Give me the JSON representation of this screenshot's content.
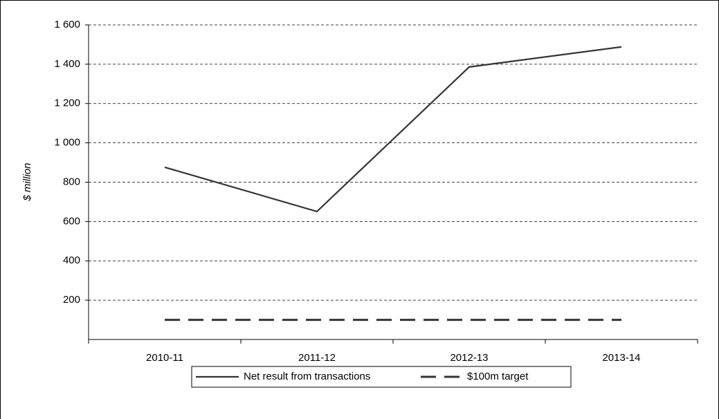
{
  "chart_data": {
    "type": "line",
    "y_label": "$ million",
    "categories": [
      "2010-11",
      "2011-12",
      "2012-13",
      "2013-14"
    ],
    "series": [
      {
        "name": "Net result from transactions",
        "color": "#333333",
        "style": "solid",
        "values": [
          876,
          651,
          1386,
          1488
        ]
      },
      {
        "name": "$100m target",
        "color": "#333333",
        "style": "dashed",
        "values": [
          100,
          100,
          100,
          100
        ]
      }
    ],
    "ylim": [
      0,
      1600
    ],
    "yticks": [
      {
        "value": 200,
        "label": "200"
      },
      {
        "value": 400,
        "label": "400"
      },
      {
        "value": 600,
        "label": "600"
      },
      {
        "value": 800,
        "label": "800"
      },
      {
        "value": 1000,
        "label": "1 000"
      },
      {
        "value": 1200,
        "label": "1 200"
      },
      {
        "value": 1400,
        "label": "1 400"
      },
      {
        "value": 1600,
        "label": "1 600"
      }
    ],
    "grid": true,
    "legend": "bottom"
  }
}
